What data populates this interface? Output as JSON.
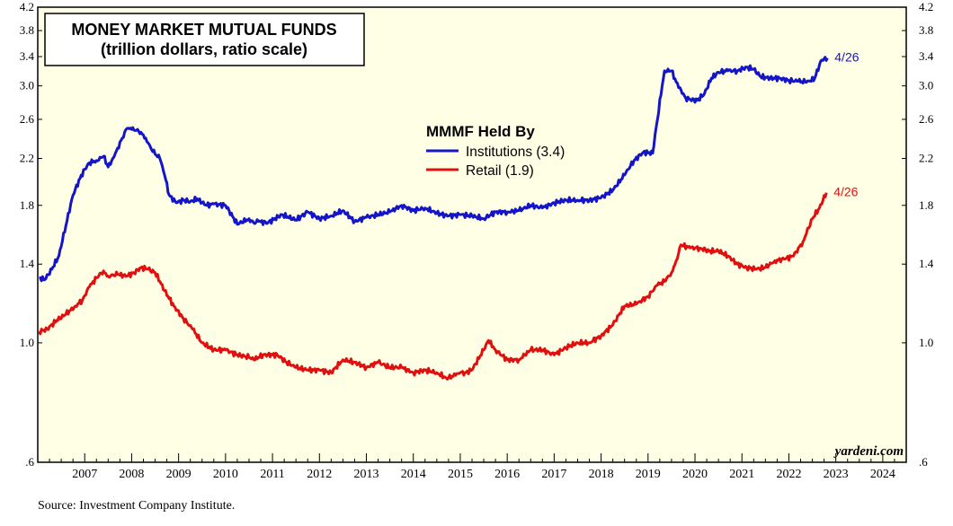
{
  "chart_data": {
    "type": "line",
    "title": "MONEY MARKET MUTUAL FUNDS",
    "subtitle": "(trillion dollars, ratio scale)",
    "yscale": "log",
    "ylim": [
      0.6,
      4.2
    ],
    "xlim": [
      2006.5,
      2025.0
    ],
    "yticks": [
      0.6,
      1.0,
      1.4,
      1.8,
      2.2,
      2.6,
      3.0,
      3.4,
      3.8,
      4.2
    ],
    "ytick_labels": [
      ".6",
      "1.0",
      "1.4",
      "1.8",
      "2.2",
      "2.6",
      "3.0",
      "3.4",
      "3.8",
      "4.2"
    ],
    "xtick_labels": [
      "2007",
      "2008",
      "2009",
      "2010",
      "2011",
      "2012",
      "2013",
      "2014",
      "2015",
      "2016",
      "2017",
      "2018",
      "2019",
      "2020",
      "2021",
      "2022",
      "2023",
      "2024"
    ],
    "legend_title": "MMMF Held By",
    "legend_position": "center-top",
    "series": [
      {
        "name": "Institutions (3.4)",
        "color": "#1414c8",
        "end_label": "4/26",
        "x": [
          2006.53,
          2006.65,
          2006.8,
          2006.95,
          2007.1,
          2007.25,
          2007.4,
          2007.5,
          2007.6,
          2007.75,
          2007.9,
          2008.0,
          2008.1,
          2008.2,
          2008.3,
          2008.4,
          2008.5,
          2008.6,
          2008.65,
          2008.7,
          2008.8,
          2008.9,
          2009.0,
          2009.1,
          2009.2,
          2009.3,
          2009.45,
          2009.6,
          2009.75,
          2009.9,
          2010.0,
          2010.1,
          2010.25,
          2010.5,
          2010.75,
          2011.0,
          2011.1,
          2011.2,
          2011.4,
          2011.7,
          2012.0,
          2012.25,
          2012.5,
          2012.75,
          2013.0,
          2013.25,
          2013.5,
          2013.75,
          2014.0,
          2014.25,
          2014.5,
          2014.75,
          2015.0,
          2015.25,
          2015.5,
          2015.75,
          2016.0,
          2016.25,
          2016.5,
          2016.75,
          2017.0,
          2017.25,
          2017.5,
          2017.75,
          2018.0,
          2018.25,
          2018.5,
          2018.75,
          2019.0,
          2019.2,
          2019.4,
          2019.6,
          2019.7,
          2019.85,
          2020.0,
          2020.1,
          2020.2,
          2020.3,
          2020.4,
          2020.55,
          2020.7,
          2020.85,
          2021.0,
          2021.2,
          2021.4,
          2021.6,
          2021.75,
          2021.9,
          2022.1,
          2022.3,
          2022.5,
          2022.7,
          2022.85,
          2022.95,
          2023.05,
          2023.15,
          2023.2,
          2023.32
        ],
        "values": [
          1.32,
          1.31,
          1.37,
          1.45,
          1.65,
          1.88,
          2.02,
          2.1,
          2.16,
          2.18,
          2.22,
          2.12,
          2.2,
          2.3,
          2.4,
          2.5,
          2.49,
          2.48,
          2.47,
          2.46,
          2.4,
          2.31,
          2.24,
          2.2,
          2.05,
          1.88,
          1.82,
          1.84,
          1.83,
          1.85,
          1.82,
          1.8,
          1.81,
          1.8,
          1.66,
          1.7,
          1.67,
          1.68,
          1.67,
          1.73,
          1.69,
          1.75,
          1.7,
          1.72,
          1.76,
          1.68,
          1.71,
          1.73,
          1.75,
          1.8,
          1.76,
          1.78,
          1.74,
          1.72,
          1.73,
          1.72,
          1.7,
          1.75,
          1.75,
          1.76,
          1.8,
          1.78,
          1.82,
          1.84,
          1.84,
          1.84,
          1.86,
          1.92,
          2.05,
          2.18,
          2.26,
          2.25,
          2.6,
          3.2,
          3.2,
          3.05,
          2.95,
          2.85,
          2.83,
          2.82,
          2.9,
          3.1,
          3.18,
          3.2,
          3.2,
          3.25,
          3.22,
          3.12,
          3.1,
          3.1,
          3.07,
          3.06,
          3.05,
          3.06,
          3.1,
          3.28,
          3.35,
          3.38
        ]
      },
      {
        "name": "Retail (1.9)",
        "color": "#e01010",
        "end_label": "4/26",
        "x": [
          2006.53,
          2006.7,
          2006.9,
          2007.1,
          2007.3,
          2007.45,
          2007.6,
          2007.75,
          2007.9,
          2008.0,
          2008.2,
          2008.4,
          2008.55,
          2008.7,
          2008.85,
          2009.0,
          2009.2,
          2009.4,
          2009.6,
          2009.8,
          2010.0,
          2010.25,
          2010.5,
          2010.75,
          2011.0,
          2011.1,
          2011.3,
          2011.6,
          2011.8,
          2012.0,
          2012.25,
          2012.5,
          2012.75,
          2013.0,
          2013.25,
          2013.5,
          2013.75,
          2014.0,
          2014.25,
          2014.5,
          2014.75,
          2015.0,
          2015.2,
          2015.4,
          2015.5,
          2015.6,
          2015.75,
          2016.0,
          2016.1,
          2016.25,
          2016.5,
          2016.75,
          2017.0,
          2017.25,
          2017.5,
          2017.75,
          2018.0,
          2018.25,
          2018.5,
          2018.75,
          2019.0,
          2019.25,
          2019.5,
          2019.7,
          2019.85,
          2020.0,
          2020.1,
          2020.2,
          2020.4,
          2020.6,
          2020.8,
          2021.0,
          2021.2,
          2021.4,
          2021.6,
          2021.8,
          2022.0,
          2022.2,
          2022.4,
          2022.6,
          2022.8,
          2023.0,
          2023.15,
          2023.3
        ],
        "values": [
          1.05,
          1.06,
          1.1,
          1.13,
          1.17,
          1.2,
          1.27,
          1.32,
          1.36,
          1.33,
          1.34,
          1.33,
          1.35,
          1.38,
          1.37,
          1.35,
          1.25,
          1.17,
          1.11,
          1.06,
          1.0,
          0.97,
          0.97,
          0.95,
          0.94,
          0.93,
          0.95,
          0.95,
          0.92,
          0.9,
          0.89,
          0.89,
          0.88,
          0.93,
          0.92,
          0.9,
          0.92,
          0.9,
          0.9,
          0.88,
          0.89,
          0.88,
          0.86,
          0.87,
          0.88,
          0.88,
          0.89,
          0.97,
          1.01,
          0.97,
          0.93,
          0.93,
          0.97,
          0.97,
          0.95,
          0.98,
          1.0,
          1.0,
          1.03,
          1.08,
          1.17,
          1.18,
          1.22,
          1.28,
          1.3,
          1.35,
          1.42,
          1.52,
          1.5,
          1.5,
          1.48,
          1.48,
          1.45,
          1.4,
          1.38,
          1.37,
          1.38,
          1.42,
          1.43,
          1.45,
          1.54,
          1.7,
          1.78,
          1.9
        ]
      }
    ]
  },
  "watermark": "yardeni.com",
  "source": "Source: Investment Company Institute."
}
